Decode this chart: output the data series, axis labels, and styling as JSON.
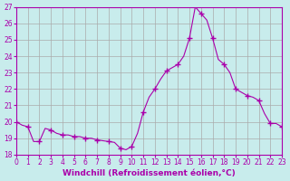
{
  "xlabel": "Windchill (Refroidissement éolien,°C)",
  "ylabel": "",
  "bg_color": "#c8ecec",
  "grid_color": "#aaaaaa",
  "line_color": "#aa00aa",
  "marker_color": "#aa00aa",
  "xlim": [
    0,
    23
  ],
  "ylim": [
    18,
    27
  ],
  "yticks": [
    18,
    19,
    20,
    21,
    22,
    23,
    24,
    25,
    26,
    27
  ],
  "xticks": [
    0,
    1,
    2,
    3,
    4,
    5,
    6,
    7,
    8,
    9,
    10,
    11,
    12,
    13,
    14,
    15,
    16,
    17,
    18,
    19,
    20,
    21,
    22,
    23
  ],
  "x": [
    0,
    0.5,
    1,
    1.5,
    2,
    2.5,
    3,
    3.5,
    4,
    4.5,
    5,
    5.5,
    6,
    6.5,
    7,
    7.5,
    8,
    8.5,
    9,
    9.5,
    10,
    10.5,
    11,
    11.5,
    12,
    12.5,
    13,
    13.5,
    14,
    14.5,
    15,
    15.5,
    16,
    16.5,
    17,
    17.5,
    18,
    18.5,
    19,
    19.5,
    20,
    20.5,
    21,
    21.5,
    22,
    22.5,
    23
  ],
  "y": [
    20.0,
    19.8,
    19.7,
    18.8,
    18.8,
    19.6,
    19.5,
    19.3,
    19.2,
    19.2,
    19.1,
    19.1,
    19.0,
    19.0,
    18.9,
    18.85,
    18.8,
    18.75,
    18.4,
    18.3,
    18.5,
    19.3,
    20.6,
    21.5,
    22.0,
    22.6,
    23.1,
    23.3,
    23.5,
    24.0,
    25.1,
    27.0,
    26.6,
    26.2,
    25.1,
    23.8,
    23.5,
    23.0,
    22.0,
    21.8,
    21.6,
    21.5,
    21.3,
    20.5,
    19.9,
    19.9,
    19.7
  ],
  "marker_hours": [
    0,
    1,
    2,
    3,
    4,
    5,
    6,
    7,
    8,
    9,
    10,
    11,
    12,
    13,
    14,
    15,
    16,
    17,
    18,
    19,
    20,
    21,
    22,
    23
  ],
  "marker_y": [
    20.0,
    19.7,
    18.8,
    19.5,
    19.2,
    19.1,
    19.0,
    18.9,
    18.8,
    18.4,
    18.5,
    20.6,
    22.0,
    23.1,
    23.5,
    25.1,
    26.6,
    25.1,
    23.5,
    22.0,
    21.6,
    21.3,
    19.9,
    19.7
  ]
}
